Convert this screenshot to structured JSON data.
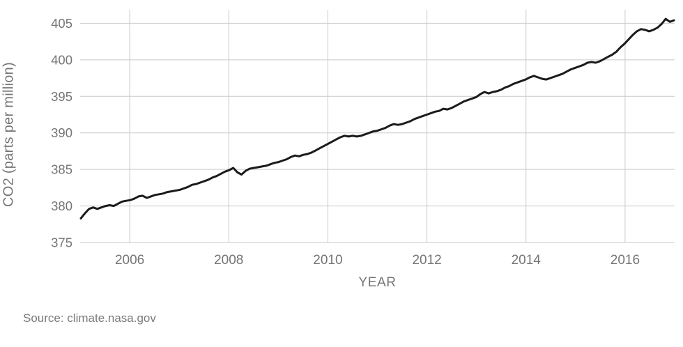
{
  "page": {
    "background_color": "#ffffff"
  },
  "source_text": "Source: climate.nasa.gov",
  "chart_data": {
    "type": "line",
    "title": "",
    "xlabel": "YEAR",
    "ylabel": "CO2 (parts per million)",
    "legend": "none",
    "grid": true,
    "xlim": [
      2005,
      2017
    ],
    "ylim": [
      375,
      406.85
    ],
    "x_tick_years": [
      2006,
      2008,
      2010,
      2012,
      2014,
      2016
    ],
    "x_tick_labels": [
      "2006",
      "2008",
      "2010",
      "2012",
      "2014",
      "2016"
    ],
    "y_ticks": [
      375,
      380,
      385,
      390,
      395,
      400,
      405
    ],
    "y_tick_labels": [
      "375",
      "380",
      "385",
      "390",
      "395",
      "400",
      "405"
    ],
    "line_color": "#1b1b1b",
    "grid_color": "#c9c9c9",
    "text_color": "#757575",
    "series": [
      {
        "start_year": 2005,
        "points_per_year": 12,
        "unit": "ppm",
        "values": [
          378.3,
          379.0,
          379.6,
          379.8,
          379.6,
          379.8,
          380.0,
          380.1,
          380.0,
          380.3,
          380.6,
          380.7,
          380.8,
          381.0,
          381.3,
          381.4,
          381.1,
          381.3,
          381.5,
          381.6,
          381.7,
          381.9,
          382.0,
          382.1,
          382.2,
          382.4,
          382.6,
          382.9,
          383.0,
          383.2,
          383.4,
          383.6,
          383.9,
          384.1,
          384.4,
          384.7,
          384.9,
          385.2,
          384.6,
          384.3,
          384.8,
          385.1,
          385.2,
          385.3,
          385.4,
          385.5,
          385.7,
          385.9,
          386.0,
          386.2,
          386.4,
          386.7,
          386.9,
          386.8,
          387.0,
          387.1,
          387.3,
          387.6,
          387.9,
          388.2,
          388.5,
          388.8,
          389.1,
          389.4,
          389.6,
          389.5,
          389.6,
          389.5,
          389.6,
          389.8,
          390.0,
          390.2,
          390.3,
          390.5,
          390.7,
          391.0,
          391.2,
          391.1,
          391.2,
          391.4,
          391.6,
          391.9,
          392.1,
          392.3,
          392.5,
          392.7,
          392.9,
          393.0,
          393.3,
          393.2,
          393.4,
          393.7,
          394.0,
          394.3,
          394.5,
          394.7,
          394.9,
          395.3,
          395.6,
          395.4,
          395.6,
          395.7,
          395.9,
          396.2,
          396.4,
          396.7,
          396.9,
          397.1,
          397.3,
          397.6,
          397.8,
          397.6,
          397.4,
          397.3,
          397.5,
          397.7,
          397.9,
          398.1,
          398.4,
          398.7,
          398.9,
          399.1,
          399.3,
          399.6,
          399.7,
          399.6,
          399.8,
          400.1,
          400.4,
          400.7,
          401.1,
          401.7,
          402.2,
          402.8,
          403.4,
          403.9,
          404.2,
          404.1,
          403.9,
          404.1,
          404.4,
          404.9,
          405.6,
          405.2,
          405.4
        ]
      }
    ]
  }
}
